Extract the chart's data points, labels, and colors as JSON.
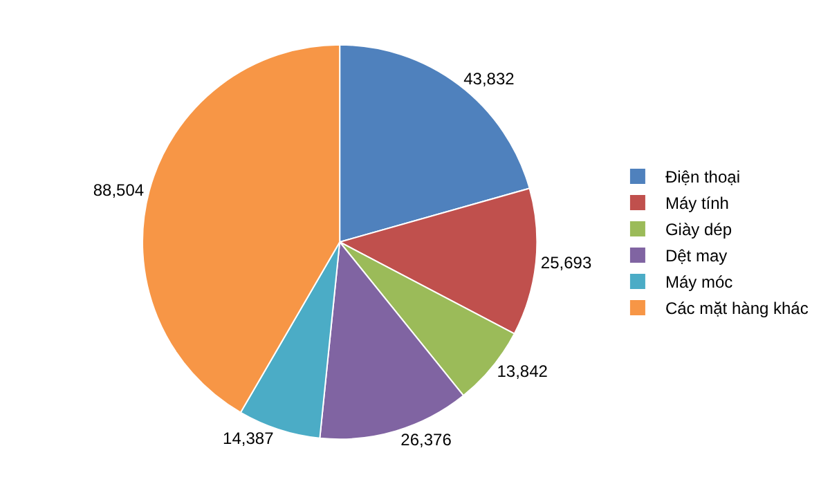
{
  "chart_data": {
    "type": "pie",
    "categories": [
      "Điện thoại",
      "Máy tính",
      "Giày dép",
      "Dệt may",
      "Máy móc",
      "Các mặt hàng khác"
    ],
    "values": [
      43832,
      25693,
      13842,
      26376,
      14387,
      88504
    ],
    "value_labels": [
      "43,832",
      "25,693",
      "13,842",
      "26,376",
      "14,387",
      "88,504"
    ],
    "colors": [
      "#4f81bd",
      "#c0504d",
      "#9bbb59",
      "#8064a2",
      "#4bacc6",
      "#f79646"
    ],
    "legend": "right"
  }
}
